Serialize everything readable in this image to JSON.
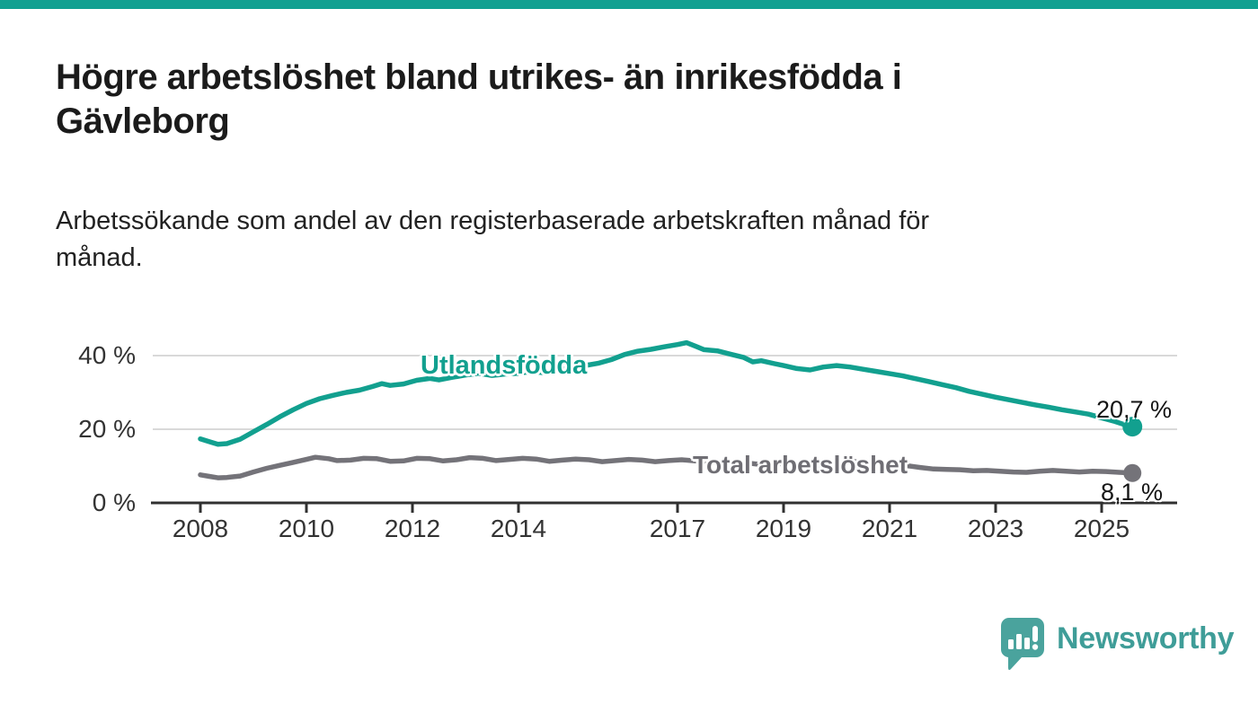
{
  "page": {
    "background": "#ffffff",
    "accent_color": "#12a091"
  },
  "header": {
    "title_line1": "Högre arbetslöshet bland utrikes- än inrikesfödda i",
    "title_line2": "Gävleborg",
    "subtitle_line1": "Arbetssökande som andel av den registerbaserade arbetskraften månad för",
    "subtitle_line2": "månad."
  },
  "chart_data": {
    "type": "line",
    "title": "Högre arbetslöshet bland utrikes- än inrikesfödda i Gävleborg",
    "subtitle": "Arbetssökande som andel av den registerbaserade arbetskraften månad för månad.",
    "xlabel": "",
    "ylabel": "",
    "ylim": [
      0,
      45
    ],
    "xlim": [
      2007.6,
      2026.3
    ],
    "grid": "horizontal",
    "legend_position": "inline-labels",
    "axis_color": "#303030",
    "gridline_color": "#d9d9d9",
    "y_ticks": [
      {
        "value": 0,
        "label": "0 %"
      },
      {
        "value": 20,
        "label": "20 %"
      },
      {
        "value": 40,
        "label": "40 %"
      }
    ],
    "x_ticks": [
      {
        "value": 2008,
        "label": "2008"
      },
      {
        "value": 2010,
        "label": "2010"
      },
      {
        "value": 2012,
        "label": "2012"
      },
      {
        "value": 2014,
        "label": "2014"
      },
      {
        "value": 2017,
        "label": "2017"
      },
      {
        "value": 2019,
        "label": "2019"
      },
      {
        "value": 2021,
        "label": "2021"
      },
      {
        "value": 2023,
        "label": "2023"
      },
      {
        "value": 2025,
        "label": "2025"
      }
    ],
    "series": [
      {
        "name": "Utlandsfödda",
        "color": "#12a08f",
        "label_color": "#12a08f",
        "end_label": "20,7 %",
        "end_value": 20.7,
        "points": [
          [
            2008.0,
            17.4
          ],
          [
            2008.17,
            16.6
          ],
          [
            2008.33,
            15.9
          ],
          [
            2008.5,
            16.1
          ],
          [
            2008.75,
            17.3
          ],
          [
            2009.0,
            19.3
          ],
          [
            2009.25,
            21.3
          ],
          [
            2009.5,
            23.4
          ],
          [
            2009.75,
            25.3
          ],
          [
            2010.0,
            27.0
          ],
          [
            2010.25,
            28.3
          ],
          [
            2010.5,
            29.2
          ],
          [
            2010.75,
            30.0
          ],
          [
            2011.0,
            30.6
          ],
          [
            2011.25,
            31.6
          ],
          [
            2011.42,
            32.4
          ],
          [
            2011.58,
            31.9
          ],
          [
            2011.83,
            32.3
          ],
          [
            2012.08,
            33.3
          ],
          [
            2012.33,
            33.8
          ],
          [
            2012.5,
            33.4
          ],
          [
            2012.75,
            34.1
          ],
          [
            2013.0,
            34.7
          ],
          [
            2013.25,
            35.2
          ],
          [
            2013.5,
            34.6
          ],
          [
            2013.75,
            35.0
          ],
          [
            2014.0,
            35.2
          ],
          [
            2014.25,
            35.7
          ],
          [
            2014.5,
            35.3
          ],
          [
            2014.75,
            36.1
          ],
          [
            2015.0,
            36.7
          ],
          [
            2015.25,
            37.3
          ],
          [
            2015.5,
            37.9
          ],
          [
            2015.75,
            38.9
          ],
          [
            2016.0,
            40.3
          ],
          [
            2016.25,
            41.2
          ],
          [
            2016.5,
            41.7
          ],
          [
            2016.75,
            42.4
          ],
          [
            2017.0,
            43.0
          ],
          [
            2017.17,
            43.5
          ],
          [
            2017.33,
            42.6
          ],
          [
            2017.5,
            41.6
          ],
          [
            2017.75,
            41.3
          ],
          [
            2018.0,
            40.4
          ],
          [
            2018.25,
            39.5
          ],
          [
            2018.42,
            38.3
          ],
          [
            2018.58,
            38.6
          ],
          [
            2018.83,
            37.8
          ],
          [
            2019.0,
            37.3
          ],
          [
            2019.25,
            36.5
          ],
          [
            2019.5,
            36.1
          ],
          [
            2019.75,
            36.9
          ],
          [
            2020.0,
            37.3
          ],
          [
            2020.25,
            36.9
          ],
          [
            2020.5,
            36.3
          ],
          [
            2020.75,
            35.7
          ],
          [
            2021.0,
            35.1
          ],
          [
            2021.25,
            34.5
          ],
          [
            2021.5,
            33.7
          ],
          [
            2021.75,
            32.9
          ],
          [
            2022.0,
            32.1
          ],
          [
            2022.25,
            31.3
          ],
          [
            2022.5,
            30.3
          ],
          [
            2022.75,
            29.5
          ],
          [
            2023.0,
            28.7
          ],
          [
            2023.25,
            28.0
          ],
          [
            2023.5,
            27.3
          ],
          [
            2023.75,
            26.6
          ],
          [
            2024.0,
            26.0
          ],
          [
            2024.25,
            25.3
          ],
          [
            2024.5,
            24.7
          ],
          [
            2024.75,
            24.1
          ],
          [
            2025.0,
            23.1
          ],
          [
            2025.25,
            22.1
          ],
          [
            2025.42,
            21.3
          ],
          [
            2025.58,
            20.7
          ]
        ]
      },
      {
        "name": "Total arbetslöshet",
        "color": "#747379",
        "label_color": "#6f6e74",
        "end_label": "8,1 %",
        "end_value": 8.1,
        "points": [
          [
            2008.0,
            7.6
          ],
          [
            2008.17,
            7.2
          ],
          [
            2008.33,
            6.8
          ],
          [
            2008.5,
            6.9
          ],
          [
            2008.75,
            7.3
          ],
          [
            2009.0,
            8.4
          ],
          [
            2009.25,
            9.4
          ],
          [
            2009.5,
            10.2
          ],
          [
            2009.75,
            11.0
          ],
          [
            2010.0,
            11.8
          ],
          [
            2010.17,
            12.4
          ],
          [
            2010.42,
            12.0
          ],
          [
            2010.58,
            11.5
          ],
          [
            2010.83,
            11.6
          ],
          [
            2011.08,
            12.1
          ],
          [
            2011.33,
            12.0
          ],
          [
            2011.58,
            11.3
          ],
          [
            2011.83,
            11.4
          ],
          [
            2012.08,
            12.1
          ],
          [
            2012.33,
            12.0
          ],
          [
            2012.58,
            11.4
          ],
          [
            2012.83,
            11.7
          ],
          [
            2013.08,
            12.3
          ],
          [
            2013.33,
            12.1
          ],
          [
            2013.58,
            11.5
          ],
          [
            2013.83,
            11.8
          ],
          [
            2014.08,
            12.1
          ],
          [
            2014.33,
            11.9
          ],
          [
            2014.58,
            11.3
          ],
          [
            2014.83,
            11.6
          ],
          [
            2015.08,
            11.9
          ],
          [
            2015.33,
            11.7
          ],
          [
            2015.58,
            11.2
          ],
          [
            2015.83,
            11.5
          ],
          [
            2016.08,
            11.8
          ],
          [
            2016.33,
            11.6
          ],
          [
            2016.58,
            11.2
          ],
          [
            2016.83,
            11.5
          ],
          [
            2017.08,
            11.7
          ],
          [
            2017.33,
            11.4
          ],
          [
            2017.58,
            11.0
          ],
          [
            2017.83,
            11.1
          ],
          [
            2018.08,
            11.2
          ],
          [
            2018.33,
            10.8
          ],
          [
            2018.58,
            10.4
          ],
          [
            2018.83,
            10.6
          ],
          [
            2019.08,
            10.7
          ],
          [
            2019.33,
            10.3
          ],
          [
            2019.58,
            10.2
          ],
          [
            2019.83,
            10.5
          ],
          [
            2020.08,
            10.7
          ],
          [
            2020.33,
            11.2
          ],
          [
            2020.58,
            11.0
          ],
          [
            2020.83,
            10.7
          ],
          [
            2021.08,
            10.5
          ],
          [
            2021.33,
            10.1
          ],
          [
            2021.58,
            9.6
          ],
          [
            2021.83,
            9.2
          ],
          [
            2022.08,
            9.1
          ],
          [
            2022.33,
            9.0
          ],
          [
            2022.58,
            8.7
          ],
          [
            2022.83,
            8.8
          ],
          [
            2023.08,
            8.6
          ],
          [
            2023.33,
            8.4
          ],
          [
            2023.58,
            8.3
          ],
          [
            2023.83,
            8.6
          ],
          [
            2024.08,
            8.8
          ],
          [
            2024.33,
            8.6
          ],
          [
            2024.58,
            8.4
          ],
          [
            2024.83,
            8.6
          ],
          [
            2025.08,
            8.5
          ],
          [
            2025.33,
            8.3
          ],
          [
            2025.58,
            8.1
          ]
        ]
      }
    ]
  },
  "footer": {
    "brand": "Newsworthy",
    "brand_color": "#3f9d98"
  }
}
